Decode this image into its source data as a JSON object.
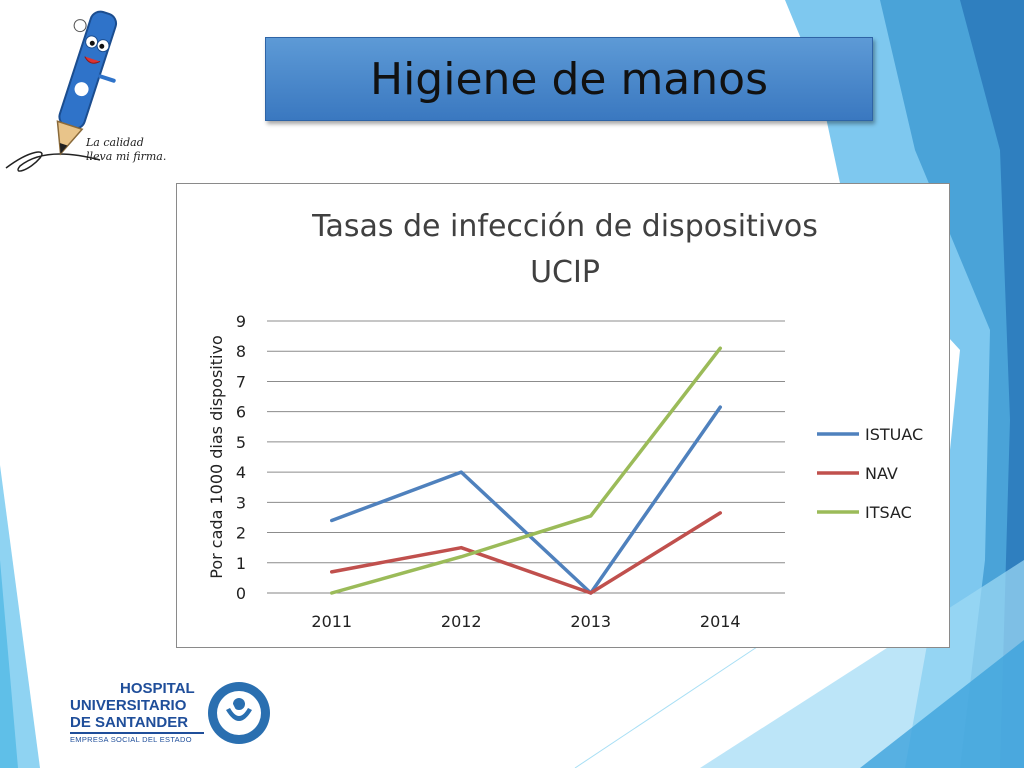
{
  "slide": {
    "title": "Higiene de manos"
  },
  "branding": {
    "tagline_line1": "La calidad",
    "tagline_line2": "lleva mi firma.",
    "hospital_line1": "HOSPITAL",
    "hospital_line2": "UNIVERSITARIO",
    "hospital_line3": "DE SANTANDER",
    "hospital_line4": "EMPRESA SOCIAL DEL ESTADO"
  },
  "colors": {
    "accent_blue": "#3a78c0",
    "dark_blue": "#2a6fb0",
    "light_blue": "#7ec8ef"
  },
  "chart_data": {
    "type": "line",
    "title_line1": "Tasas de infección de dispositivos",
    "title_line2": "UCIP",
    "ylabel": "Por cada 1000 dias dispositivo",
    "xlabel": "",
    "categories": [
      "2011",
      "2012",
      "2013",
      "2014"
    ],
    "ylim": [
      0,
      9
    ],
    "yticks": [
      "0",
      "1",
      "2",
      "3",
      "4",
      "5",
      "6",
      "7",
      "8",
      "9"
    ],
    "grid": true,
    "legend_position": "right",
    "series": [
      {
        "name": "ISTUAC",
        "color": "#4f81bd",
        "values": [
          2.4,
          4.0,
          0.0,
          6.15
        ]
      },
      {
        "name": "NAV",
        "color": "#c0504d",
        "values": [
          0.7,
          1.5,
          0.0,
          2.65
        ]
      },
      {
        "name": "ITSAC",
        "color": "#9bbb59",
        "values": [
          0.0,
          1.2,
          2.55,
          8.1
        ]
      }
    ]
  }
}
